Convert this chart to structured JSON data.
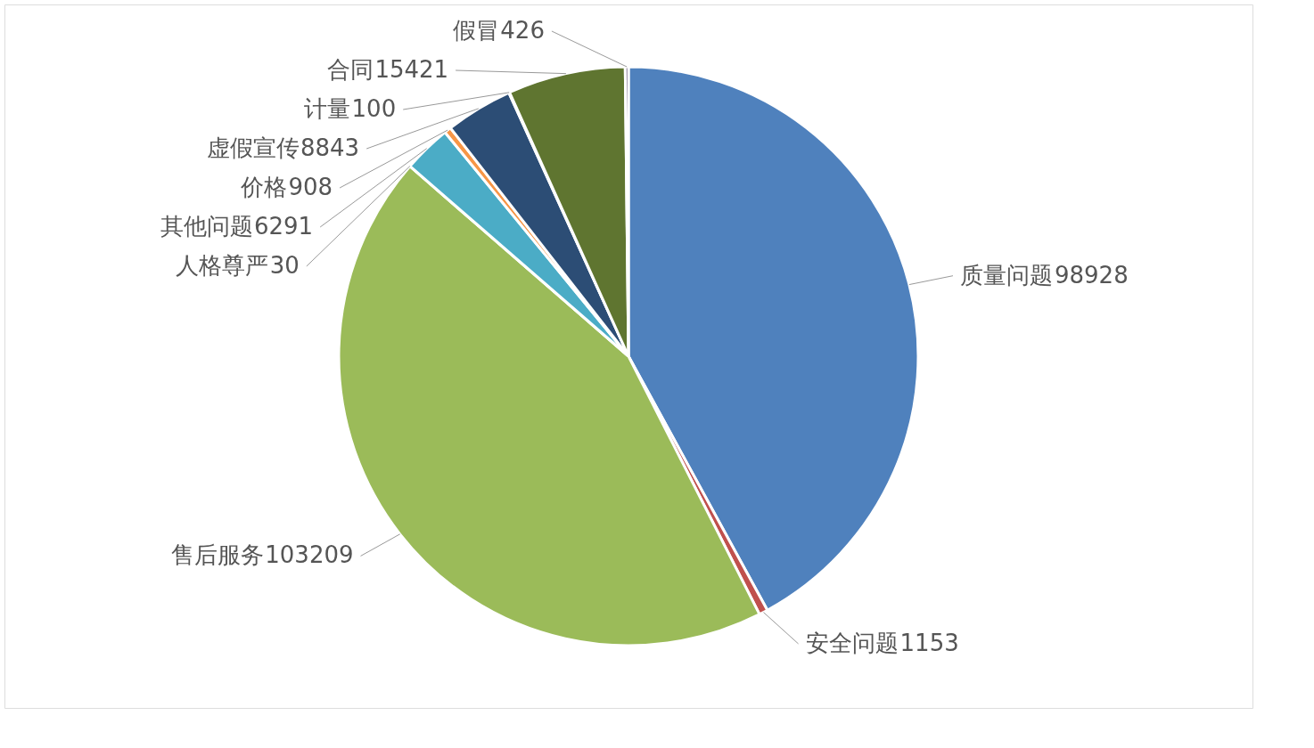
{
  "chart_data": {
    "type": "pie",
    "categories": [
      "质量问题",
      "安全问题",
      "售后服务",
      "人格尊严",
      "其他问题",
      "价格",
      "虚假宣传",
      "计量",
      "合同",
      "假冒"
    ],
    "values": [
      98928,
      1153,
      103209,
      30,
      6291,
      908,
      8843,
      100,
      15421,
      426
    ],
    "colors": [
      "#4f81bd",
      "#c0504d",
      "#9bbb59",
      "#8064a2",
      "#4bacc6",
      "#f79646",
      "#2c4d75",
      "#772c2a",
      "#5f7530",
      "#4d3b62"
    ],
    "data_labels": true,
    "legend": false
  }
}
